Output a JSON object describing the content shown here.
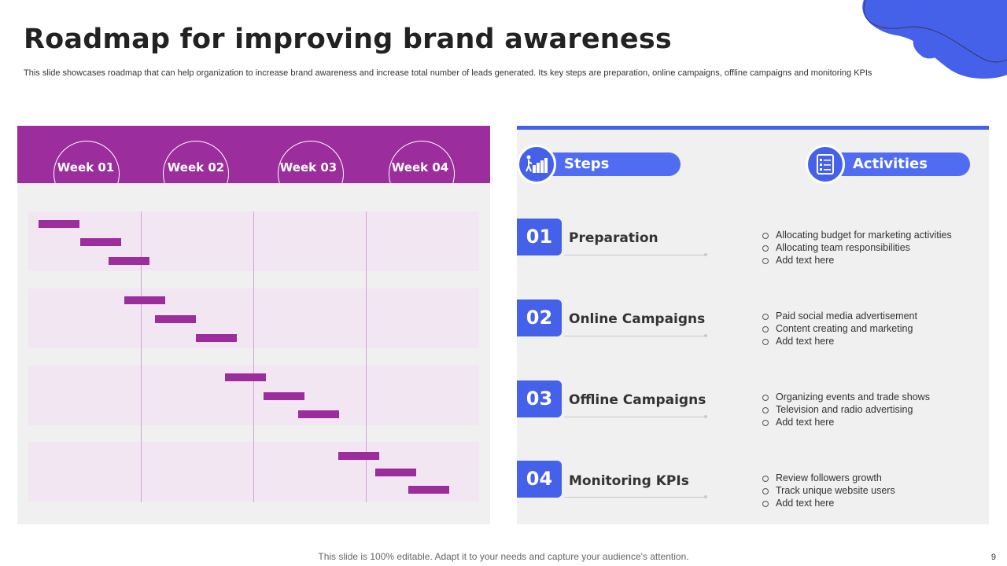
{
  "slide": {
    "title": "Roadmap for improving brand awareness",
    "subtitle": "This slide showcases roadmap that can help organization to increase brand awareness and increase total number of leads generated. Its key steps are preparation, online campaigns, offline campaigns and monitoring KPIs",
    "footer": "This slide is 100% editable. Adapt it to your needs and capture your audience's attention.",
    "page_number": "9"
  },
  "gantt": {
    "weeks": [
      "Week 01",
      "Week 02",
      "Week 03",
      "Week 04"
    ]
  },
  "headers": {
    "steps_label": "Steps",
    "activities_label": "Activities"
  },
  "steps": [
    {
      "number": "01",
      "title": "Preparation",
      "activities": [
        "Allocating budget for marketing activities",
        "Allocating team responsibilities",
        "Add text here"
      ]
    },
    {
      "number": "02",
      "title": "Online Campaigns",
      "activities": [
        "Paid social media advertisement",
        "Content creating and marketing",
        "Add text here"
      ]
    },
    {
      "number": "03",
      "title": "Offline Campaigns",
      "activities": [
        "Organizing events and trade shows",
        "Television  and radio advertising",
        "Add text here"
      ]
    },
    {
      "number": "04",
      "title": "Monitoring KPIs",
      "activities": [
        "Review  followers growth",
        "Track unique website users",
        "Add text here"
      ]
    }
  ],
  "colors": {
    "purple": "#9b2d9c",
    "blue": "#4560e9"
  }
}
